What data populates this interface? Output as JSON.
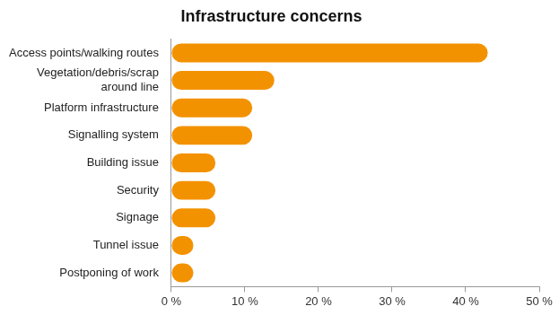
{
  "chart_data": {
    "type": "bar",
    "orientation": "horizontal",
    "title": "Infrastructure concerns",
    "categories": [
      "Access points/walking routes",
      "Vegetation/debris/scrap around line",
      "Platform infrastructure",
      "Signalling system",
      "Building issue",
      "Security",
      "Signage",
      "Tunnel issue",
      "Postponing of work"
    ],
    "values": [
      43,
      14,
      11,
      11,
      6,
      6,
      6,
      3,
      3
    ],
    "color": "#f39200",
    "xlim": [
      0,
      50
    ],
    "xticks": [
      {
        "value": 0,
        "label": "0 %"
      },
      {
        "value": 10,
        "label": "10 %"
      },
      {
        "value": 20,
        "label": "20 %"
      },
      {
        "value": 30,
        "label": "30 %"
      },
      {
        "value": 40,
        "label": "40 %"
      },
      {
        "value": 50,
        "label": "50 %"
      }
    ],
    "grid": false
  }
}
